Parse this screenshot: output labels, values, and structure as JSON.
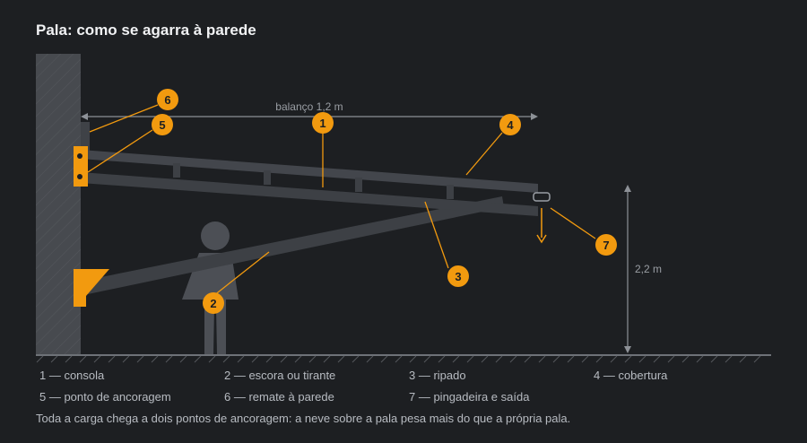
{
  "title": "Pala: como se agarra à parede",
  "dimensions": {
    "overhang_label": "balanço 1,2 m",
    "height_label": "2,2 m"
  },
  "markers": [
    "1",
    "2",
    "3",
    "4",
    "5",
    "6",
    "7"
  ],
  "legend": [
    {
      "text": "1 — consola"
    },
    {
      "text": "2 — escora ou tirante"
    },
    {
      "text": "3 — ripado"
    },
    {
      "text": "4 — cobertura"
    },
    {
      "text": "5 — ponto de ancoragem"
    },
    {
      "text": "6 — remate à parede"
    },
    {
      "text": "7 — pingadeira e saída"
    }
  ],
  "note": "Toda a carga chega a dois pontos de ancoragem: a neve sobre a pala pesa mais do que a própria pala.",
  "colors": {
    "background": "#1d1f22",
    "accent": "#f29a0f",
    "wall": "#4a4d52",
    "structure": "#3d4045",
    "person": "#4c4f55",
    "dimension": "#8d9197"
  }
}
